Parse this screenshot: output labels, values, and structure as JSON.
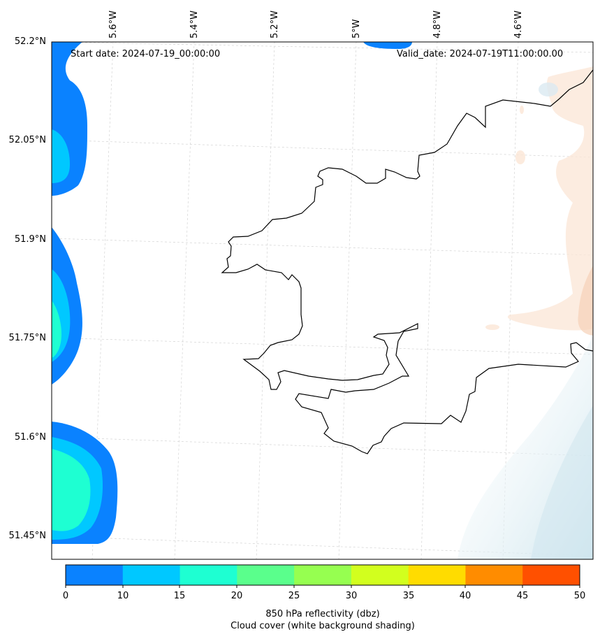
{
  "map": {
    "start_date": "Start date: 2024-07-19_00:00:00",
    "valid_date": "Valid_date: 2024-07-19T11:00:00.00",
    "lat_labels": [
      "52.2°N",
      "52.05°N",
      "51.9°N",
      "51.75°N",
      "51.6°N",
      "51.45°N"
    ],
    "lon_labels": [
      "5.6°W",
      "5.4°W",
      "5.2°W",
      "5°W",
      "4.8°W",
      "4.6°W"
    ]
  },
  "colorbar": {
    "ticks": [
      "0",
      "10",
      "15",
      "20",
      "25",
      "30",
      "35",
      "40",
      "45",
      "50"
    ],
    "colors": [
      "#0a82ff",
      "#00c8ff",
      "#1effd2",
      "#5aff8c",
      "#96ff50",
      "#d2ff1e",
      "#ffdc00",
      "#ff8c00",
      "#ff5000"
    ],
    "label_line1": "850 hPa reflectivity (dbz)",
    "label_line2": "Cloud cover (white background shading)"
  }
}
